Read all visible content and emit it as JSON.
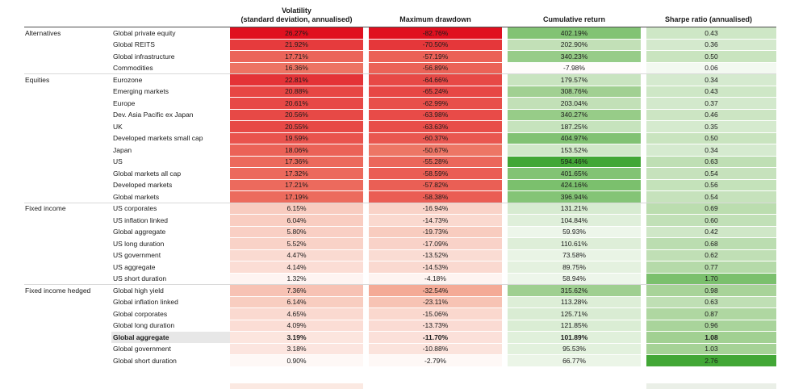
{
  "table": {
    "headers": {
      "volatility_line1": "Volatility",
      "volatility_line2": "(standard deviation, annualised)",
      "max_drawdown": "Maximum drawdown",
      "cumulative_return": "Cumulative return",
      "sharpe_ratio": "Sharpe ratio (annualised)"
    }
  },
  "colors": {
    "text": "#1a1a1a",
    "header_rule": "#4f4f4f",
    "group_rule": "#d9d9d9",
    "highlight_row_bg": "#e7e7e7",
    "red_scale": [
      "#ffffff",
      "#f19379",
      "#e0101f"
    ],
    "green_scale": [
      "#ffffff",
      "#a5d296",
      "#42a736"
    ],
    "crop_hint_left": "#fbe9e2",
    "crop_hint_right": "#eaefe7"
  },
  "chart_data": {
    "type": "table",
    "subtype": "heatmap",
    "columns": [
      "Volatility (standard deviation, annualised)",
      "Maximum drawdown",
      "Cumulative return",
      "Sharpe ratio (annualised)"
    ],
    "column_format": [
      "percent",
      "percent",
      "percent",
      "ratio"
    ],
    "color_columns": [
      {
        "dir": "red",
        "max_abs": 26.27,
        "gamma": 1.0
      },
      {
        "dir": "red",
        "max_abs": 82.76,
        "gamma": 1.0
      },
      {
        "dir": "signed",
        "max_abs": 594.46,
        "gamma": 1.0
      },
      {
        "dir": "green",
        "max_abs": 2.76,
        "gamma": 0.7
      }
    ],
    "groups": [
      {
        "label": "Alternatives",
        "rows": [
          {
            "name": "Global private equity",
            "values": [
              26.27,
              -82.76,
              402.19,
              0.43
            ]
          },
          {
            "name": "Global REITS",
            "values": [
              21.92,
              -70.5,
              202.9,
              0.36
            ]
          },
          {
            "name": "Global infrastructure",
            "values": [
              17.71,
              -57.19,
              340.23,
              0.5
            ]
          },
          {
            "name": "Commodities",
            "values": [
              16.36,
              -56.89,
              -7.98,
              0.06
            ]
          }
        ]
      },
      {
        "label": "Equities",
        "rows": [
          {
            "name": "Eurozone",
            "values": [
              22.81,
              -64.66,
              179.57,
              0.34
            ]
          },
          {
            "name": "Emerging markets",
            "values": [
              20.88,
              -65.24,
              308.76,
              0.43
            ]
          },
          {
            "name": "Europe",
            "values": [
              20.61,
              -62.99,
              203.04,
              0.37
            ]
          },
          {
            "name": "Dev. Asia Pacific ex Japan",
            "values": [
              20.56,
              -63.98,
              340.27,
              0.46
            ]
          },
          {
            "name": "UK",
            "values": [
              20.55,
              -63.63,
              187.25,
              0.35
            ]
          },
          {
            "name": "Developed markets small cap",
            "values": [
              19.59,
              -60.37,
              404.97,
              0.5
            ]
          },
          {
            "name": "Japan",
            "values": [
              18.06,
              -50.67,
              153.52,
              0.34
            ]
          },
          {
            "name": "US",
            "values": [
              17.36,
              -55.28,
              594.46,
              0.63
            ]
          },
          {
            "name": "Global markets all cap",
            "values": [
              17.32,
              -58.59,
              401.65,
              0.54
            ]
          },
          {
            "name": "Developed markets",
            "values": [
              17.21,
              -57.82,
              424.16,
              0.56
            ]
          },
          {
            "name": "Global markets",
            "values": [
              17.19,
              -58.38,
              396.94,
              0.54
            ]
          }
        ]
      },
      {
        "label": "Fixed income",
        "rows": [
          {
            "name": "US corporates",
            "values": [
              6.15,
              -16.94,
              131.21,
              0.69
            ]
          },
          {
            "name": "US inflation linked",
            "values": [
              6.04,
              -14.73,
              104.84,
              0.6
            ]
          },
          {
            "name": "Global aggregate",
            "values": [
              5.8,
              -19.73,
              59.93,
              0.42
            ]
          },
          {
            "name": "US long duration",
            "values": [
              5.52,
              -17.09,
              110.61,
              0.68
            ]
          },
          {
            "name": "US government",
            "values": [
              4.47,
              -13.52,
              73.58,
              0.62
            ]
          },
          {
            "name": "US aggregate",
            "values": [
              4.14,
              -14.53,
              89.75,
              0.77
            ]
          },
          {
            "name": "US short duration",
            "values": [
              1.32,
              -4.18,
              58.94,
              1.7
            ]
          }
        ]
      },
      {
        "label": "Fixed income hedged",
        "rows": [
          {
            "name": "Global high yield",
            "values": [
              7.36,
              -32.54,
              315.62,
              0.98
            ]
          },
          {
            "name": "Global inflation linked",
            "values": [
              6.14,
              -23.11,
              113.28,
              0.63
            ]
          },
          {
            "name": "Global corporates",
            "values": [
              4.65,
              -15.06,
              125.71,
              0.87
            ]
          },
          {
            "name": "Global long duration",
            "values": [
              4.09,
              -13.73,
              121.85,
              0.96
            ]
          },
          {
            "name": "Global aggregate",
            "values": [
              3.19,
              -11.7,
              101.89,
              1.08
            ],
            "highlight": true
          },
          {
            "name": "Global government",
            "values": [
              3.18,
              -10.88,
              95.53,
              1.03
            ]
          },
          {
            "name": "Global short duration",
            "values": [
              0.9,
              -2.79,
              66.77,
              2.76
            ]
          }
        ]
      }
    ]
  }
}
